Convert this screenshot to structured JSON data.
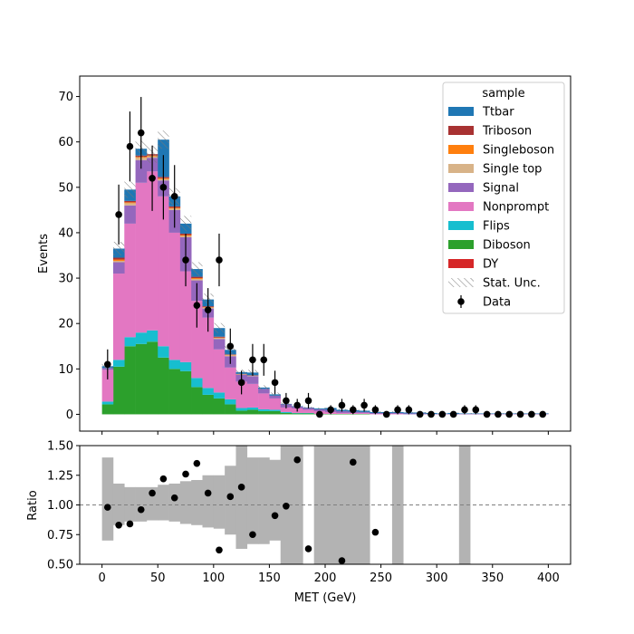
{
  "chart_data": [
    {
      "type": "bar",
      "stacked": true,
      "xlabel": "",
      "ylabel": "Events",
      "xlim": [
        -20,
        420
      ],
      "ylim": [
        -3.7,
        74.5
      ],
      "xticks": [
        0,
        50,
        100,
        150,
        200,
        250,
        300,
        350,
        400
      ],
      "yticks": [
        0,
        10,
        20,
        30,
        40,
        50,
        60,
        70
      ],
      "bin_edges": [
        0,
        10,
        20,
        30,
        40,
        50,
        60,
        70,
        80,
        90,
        100,
        110,
        120,
        130,
        140,
        150,
        160,
        170,
        180,
        190,
        200,
        210,
        220,
        230,
        240,
        250,
        260,
        270,
        280,
        290,
        300,
        310,
        320,
        330,
        340,
        350,
        360,
        370,
        380,
        390,
        400
      ],
      "legend": {
        "title": "sample",
        "position": "top-right",
        "entries": [
          "Ttbar",
          "Triboson",
          "Singleboson",
          "Single top",
          "Signal",
          "Nonprompt",
          "Flips",
          "Diboson",
          "DY",
          "Stat. Unc.",
          "Data"
        ]
      },
      "series": [
        {
          "name": "DY",
          "color": "#d62728",
          "values": [
            0,
            0,
            0,
            0,
            0,
            0,
            0,
            0,
            0,
            0,
            0,
            0,
            0,
            0,
            0,
            0,
            0,
            0,
            0,
            0,
            0,
            0,
            0,
            0,
            0,
            0,
            0,
            0,
            0,
            0,
            0,
            0,
            0,
            0,
            0,
            0,
            0,
            0,
            0,
            0
          ]
        },
        {
          "name": "Diboson",
          "color": "#2ca02c",
          "values": [
            2.2,
            10.5,
            15,
            15.5,
            16,
            12.5,
            10,
            9.5,
            6,
            4.3,
            3.5,
            2.2,
            0.8,
            1,
            0.7,
            0.7,
            0.3,
            0.2,
            0.2,
            0.1,
            0.1,
            0.1,
            0.1,
            0.1,
            0,
            0,
            0,
            0,
            0,
            0,
            0,
            0,
            0,
            0,
            0,
            0,
            0,
            0,
            0,
            0
          ]
        },
        {
          "name": "Flips",
          "color": "#17becf",
          "values": [
            0.6,
            1.5,
            2,
            2.5,
            2.5,
            2.5,
            2,
            2,
            2,
            1.5,
            1.3,
            1.1,
            0.6,
            0.5,
            0.4,
            0.3,
            0.2,
            0.1,
            0.1,
            0,
            0,
            0,
            0,
            0,
            0,
            0,
            0,
            0,
            0,
            0,
            0,
            0,
            0,
            0,
            0,
            0,
            0,
            0,
            0,
            0
          ]
        },
        {
          "name": "Nonprompt",
          "color": "#e377c2",
          "values": [
            7,
            19,
            25,
            33,
            35,
            33,
            28,
            20,
            17,
            15.5,
            9.5,
            7,
            5.8,
            5.2,
            3.5,
            2.5,
            1,
            1,
            0.7,
            0.6,
            0.4,
            0.2,
            0.2,
            0.2,
            0.1,
            0.1,
            0.1,
            0,
            0,
            0,
            0,
            0,
            0,
            0,
            0,
            0,
            0,
            0,
            0,
            0
          ]
        },
        {
          "name": "Signal",
          "color": "#9467bd",
          "values": [
            0.4,
            2.5,
            4,
            5,
            3,
            3.5,
            5,
            7.5,
            4.5,
            2,
            2.3,
            2.5,
            1.5,
            1.7,
            1,
            0.6,
            0.7,
            0.4,
            0.4,
            0.4,
            0.5,
            0.4,
            0.3,
            0.2,
            0.2,
            0.2,
            0.2,
            0.2,
            0.2,
            0.1,
            0.1,
            0.1,
            0.1,
            0.1,
            0.1,
            0.1,
            0.1,
            0.1,
            0.1,
            0.1
          ]
        },
        {
          "name": "Single top",
          "color": "#d8b388",
          "values": [
            0,
            0.3,
            0.5,
            0.5,
            0.3,
            0.3,
            0.3,
            0.3,
            0.3,
            0.2,
            0.2,
            0.2,
            0.1,
            0.1,
            0,
            0,
            0,
            0,
            0,
            0,
            0,
            0,
            0,
            0,
            0,
            0,
            0,
            0,
            0,
            0,
            0,
            0,
            0,
            0,
            0,
            0,
            0,
            0,
            0,
            0
          ]
        },
        {
          "name": "Singleboson",
          "color": "#ff7f0e",
          "values": [
            0,
            0.3,
            0.2,
            0.2,
            0.2,
            0.2,
            0.2,
            0.2,
            0.2,
            0.1,
            0.1,
            0.1,
            0,
            0,
            0,
            0,
            0,
            0,
            0,
            0,
            0,
            0,
            0,
            0,
            0,
            0,
            0,
            0,
            0,
            0,
            0,
            0,
            0,
            0,
            0,
            0,
            0,
            0,
            0,
            0
          ]
        },
        {
          "name": "Triboson",
          "color": "#a83232",
          "values": [
            0,
            0.4,
            0.3,
            0.3,
            0.3,
            0.3,
            0.3,
            0.3,
            0.3,
            0.2,
            0.2,
            0.1,
            0.1,
            0.1,
            0,
            0,
            0,
            0,
            0,
            0,
            0,
            0,
            0,
            0,
            0,
            0,
            0,
            0,
            0,
            0,
            0,
            0,
            0,
            0,
            0,
            0,
            0,
            0,
            0,
            0
          ]
        },
        {
          "name": "Ttbar",
          "color": "#1f77b4",
          "values": [
            0.4,
            2,
            2.5,
            1.5,
            0,
            8.2,
            2.2,
            2.2,
            1.7,
            1.5,
            1.9,
            1,
            0.4,
            0.6,
            0.3,
            0.3,
            0.1,
            0.1,
            0.1,
            0.2,
            0.4,
            0.3,
            0.3,
            0.3,
            0.2,
            0.2,
            0.2,
            0.2,
            0.2,
            0.2,
            0.1,
            0.2,
            0.1,
            0.1,
            0.1,
            0.1,
            0.1,
            0.1,
            0.1,
            0.1
          ]
        }
      ],
      "stat_unc": [
        0.8,
        1.5,
        1.8,
        1.9,
        1.9,
        2.0,
        1.8,
        1.7,
        1.5,
        1.3,
        1.1,
        0.9,
        0.6,
        0.6,
        0.5,
        0.4,
        0.3,
        0.3,
        0.2,
        0.2,
        0.2,
        0.2,
        0.2,
        0.2,
        0.2,
        0.2,
        0.2,
        0.1,
        0.1,
        0.1,
        0.1,
        0.1,
        0.1,
        0.1,
        0.1,
        0.1,
        0.1,
        0.1,
        0.1,
        0.1
      ],
      "data_points": {
        "name": "Data",
        "x": [
          5,
          15,
          25,
          35,
          45,
          55,
          65,
          75,
          85,
          95,
          105,
          115,
          125,
          135,
          145,
          155,
          165,
          175,
          185,
          195,
          205,
          215,
          225,
          235,
          245,
          255,
          265,
          275,
          285,
          295,
          305,
          315,
          325,
          335,
          345,
          355,
          365,
          375,
          385,
          395
        ],
        "y": [
          11,
          44,
          59,
          62,
          52,
          50,
          48,
          34,
          24,
          23,
          34,
          15,
          7,
          12,
          12,
          7,
          3,
          2,
          3,
          0,
          1,
          2,
          1,
          2,
          1,
          0,
          1,
          1,
          0,
          0,
          0,
          0,
          1,
          1,
          0,
          0,
          0,
          0,
          0,
          0
        ],
        "err": [
          3.3,
          6.6,
          7.7,
          7.9,
          7.2,
          7.1,
          6.9,
          5.8,
          4.9,
          4.8,
          5.8,
          3.9,
          2.6,
          3.5,
          3.5,
          2.6,
          1.7,
          1.4,
          1.7,
          0,
          1,
          1.4,
          1,
          1.4,
          1,
          0,
          1,
          1,
          0,
          0,
          0,
          0,
          1,
          1,
          0,
          0,
          0,
          0,
          0,
          0
        ]
      }
    },
    {
      "type": "scatter",
      "xlabel": "MET (GeV)",
      "ylabel": "Ratio",
      "xlim": [
        -20,
        420
      ],
      "ylim": [
        0.5,
        1.5
      ],
      "xticks": [
        0,
        50,
        100,
        150,
        200,
        250,
        300,
        350,
        400
      ],
      "yticks": [
        0.5,
        0.75,
        1.0,
        1.25,
        1.5
      ],
      "ytick_labels": [
        "0.50",
        "0.75",
        "1.00",
        "1.25",
        "1.50"
      ],
      "xtick_labels": [
        "0",
        "50",
        "100",
        "150",
        "200",
        "250",
        "300",
        "350",
        "400"
      ],
      "reference_line": 1.0,
      "unc_band": [
        [
          0,
          10,
          0.7,
          1.4
        ],
        [
          10,
          20,
          0.83,
          1.18
        ],
        [
          20,
          30,
          0.86,
          1.15
        ],
        [
          30,
          40,
          0.86,
          1.15
        ],
        [
          40,
          50,
          0.87,
          1.15
        ],
        [
          50,
          60,
          0.87,
          1.17
        ],
        [
          60,
          70,
          0.86,
          1.18
        ],
        [
          70,
          80,
          0.84,
          1.2
        ],
        [
          80,
          90,
          0.83,
          1.21
        ],
        [
          90,
          100,
          0.81,
          1.25
        ],
        [
          100,
          110,
          0.8,
          1.25
        ],
        [
          110,
          120,
          0.75,
          1.33
        ],
        [
          120,
          130,
          0.63,
          1.5
        ],
        [
          130,
          140,
          0.67,
          1.4
        ],
        [
          140,
          150,
          0.67,
          1.4
        ],
        [
          150,
          160,
          0.7,
          1.38
        ],
        [
          160,
          180,
          0.5,
          1.5
        ],
        [
          190,
          200,
          0.5,
          1.5
        ],
        [
          200,
          240,
          0.5,
          1.5
        ],
        [
          260,
          270,
          0.5,
          1.5
        ],
        [
          320,
          330,
          0.5,
          1.5
        ]
      ],
      "points": {
        "x": [
          5,
          15,
          25,
          35,
          45,
          55,
          65,
          75,
          85,
          95,
          105,
          115,
          125,
          135,
          155,
          165,
          175,
          185,
          215,
          225,
          245
        ],
        "y": [
          0.98,
          0.83,
          0.84,
          0.96,
          1.1,
          1.22,
          1.06,
          1.26,
          1.35,
          1.1,
          0.62,
          1.07,
          1.15,
          0.75,
          0.91,
          0.99,
          1.38,
          0.63,
          0.53,
          1.36,
          0.77
        ]
      }
    }
  ]
}
